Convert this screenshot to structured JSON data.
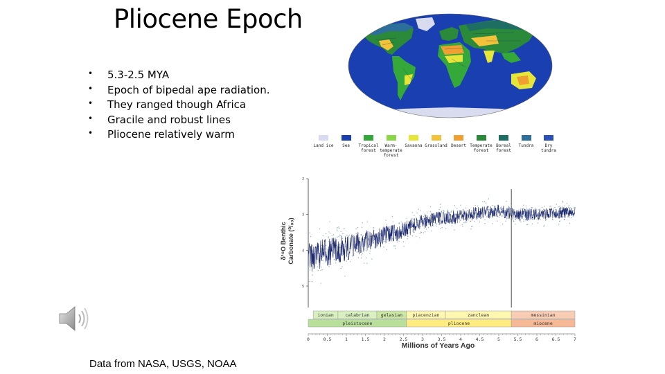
{
  "slide": {
    "title": "Pliocene Epoch",
    "bullets": [
      " 5.3-2.5 MYA",
      " Epoch of bipedal ape radiation.",
      "They ranged though Africa",
      "Gracile and robust lines",
      "Pliocene relatively warm"
    ],
    "bullet_marker": "•",
    "source_note": "Data from NASA, USGS, NOAA"
  },
  "map_legend": {
    "items": [
      {
        "label": "Land ice",
        "color": "#d9dcef"
      },
      {
        "label": "Sea",
        "color": "#1a3fb0"
      },
      {
        "label": "Tropical\nforest",
        "color": "#35a83a"
      },
      {
        "label": "Warm-\ntemperate\nforest",
        "color": "#8cd64a"
      },
      {
        "label": "Savanna",
        "color": "#e6e63a"
      },
      {
        "label": "Grassland",
        "color": "#f2c23a"
      },
      {
        "label": "Desert",
        "color": "#f0a030"
      },
      {
        "label": "Temperate\nforest",
        "color": "#2b8a3a"
      },
      {
        "label": "Boreal\nforest",
        "color": "#1f6e63"
      },
      {
        "label": "Tundra",
        "color": "#2b6f9a"
      },
      {
        "label": "Dry\ntundra",
        "color": "#2b50b8"
      }
    ]
  },
  "chart_data": {
    "type": "scatter",
    "xlabel": "Millions of Years Ago",
    "ylabel": "δ18O Benthic Carbonate (0/00)",
    "ylabel_line1": "δ¹⁸O Benthic",
    "ylabel_line2": "Carbonate (⁰/₀₀)",
    "x_ticks": [
      "0",
      "0.5",
      "1",
      "1.5",
      "2",
      "2.5",
      "3",
      "3.5",
      "4",
      "4.5",
      "5",
      "5.5",
      "6",
      "6.5",
      "7"
    ],
    "y_ticks": [
      "2",
      "3",
      "4",
      "5"
    ],
    "xlim": [
      0,
      7
    ],
    "ylim": [
      2,
      5.6
    ],
    "y_reversed": true,
    "boundary_line_x": 5.33,
    "stages": [
      {
        "name": "ionian",
        "from": 0.13,
        "to": 0.78,
        "color": "#d8efc0"
      },
      {
        "name": "calabrian",
        "from": 0.78,
        "to": 1.8,
        "color": "#d8efc0"
      },
      {
        "name": "gelasian",
        "from": 1.8,
        "to": 2.58,
        "color": "#c9e6a3"
      },
      {
        "name": "piacenzian",
        "from": 2.58,
        "to": 3.6,
        "color": "#fff6b0"
      },
      {
        "name": "zanclean",
        "from": 3.6,
        "to": 5.33,
        "color": "#fff6b0"
      },
      {
        "name": "messinian",
        "from": 5.33,
        "to": 7.0,
        "color": "#f8cdb4"
      }
    ],
    "epochs": [
      {
        "name": "pleistocene",
        "from": 0.0,
        "to": 2.58,
        "color": "#b8e09a"
      },
      {
        "name": "pliocene",
        "from": 2.58,
        "to": 5.33,
        "color": "#ffec80"
      },
      {
        "name": "miocene",
        "from": 5.33,
        "to": 7.0,
        "color": "#f7b896"
      }
    ],
    "trend": [
      {
        "x": 0.0,
        "y": 4.2
      },
      {
        "x": 0.5,
        "y": 4.05
      },
      {
        "x": 1.0,
        "y": 3.95
      },
      {
        "x": 1.5,
        "y": 3.75
      },
      {
        "x": 2.0,
        "y": 3.6
      },
      {
        "x": 2.5,
        "y": 3.45
      },
      {
        "x": 3.0,
        "y": 3.2
      },
      {
        "x": 3.5,
        "y": 3.1
      },
      {
        "x": 4.0,
        "y": 3.05
      },
      {
        "x": 4.5,
        "y": 2.95
      },
      {
        "x": 5.0,
        "y": 2.9
      },
      {
        "x": 5.5,
        "y": 3.0
      },
      {
        "x": 6.0,
        "y": 3.0
      },
      {
        "x": 6.5,
        "y": 2.95
      },
      {
        "x": 7.0,
        "y": 2.95
      }
    ],
    "spread": [
      {
        "x": 0.0,
        "y": 0.55
      },
      {
        "x": 1.0,
        "y": 0.45
      },
      {
        "x": 2.0,
        "y": 0.35
      },
      {
        "x": 3.0,
        "y": 0.25
      },
      {
        "x": 5.0,
        "y": 0.22
      },
      {
        "x": 7.0,
        "y": 0.2
      }
    ],
    "colors": {
      "line": "#1e2a6e",
      "points": "#6f8fa8"
    }
  }
}
